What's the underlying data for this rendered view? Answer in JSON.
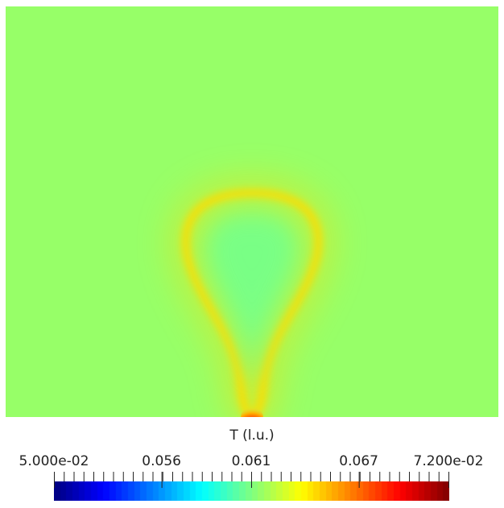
{
  "colorbar": {
    "title": "T (l.u.)",
    "min": 0.05,
    "max": 0.072,
    "labels": [
      {
        "text": "5.000e-02",
        "value": 0.05
      },
      {
        "text": "0.056",
        "value": 0.056
      },
      {
        "text": "0.061",
        "value": 0.061
      },
      {
        "text": "0.067",
        "value": 0.067
      },
      {
        "text": "7.200e-02",
        "value": 0.072
      }
    ],
    "minor_tick_count": 41,
    "colormap": "jet",
    "num_color_bands": 64
  },
  "field": {
    "background_value": 0.0615,
    "plume_ring_value": 0.0645,
    "plume_interior_value": 0.0607,
    "source_value": 0.072
  },
  "colors": {
    "background": "#ffffff",
    "text": "#222222",
    "tick": "#222222"
  }
}
